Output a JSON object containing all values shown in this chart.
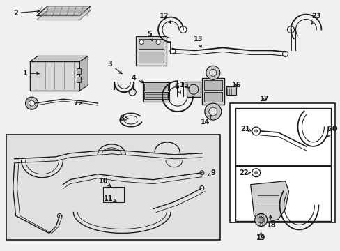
{
  "figsize": [
    4.89,
    3.6
  ],
  "dpi": 100,
  "bg": "#f0f0f0",
  "lc": "#1a1a1a",
  "white": "#ffffff",
  "gray_box": "#e0e0e0"
}
